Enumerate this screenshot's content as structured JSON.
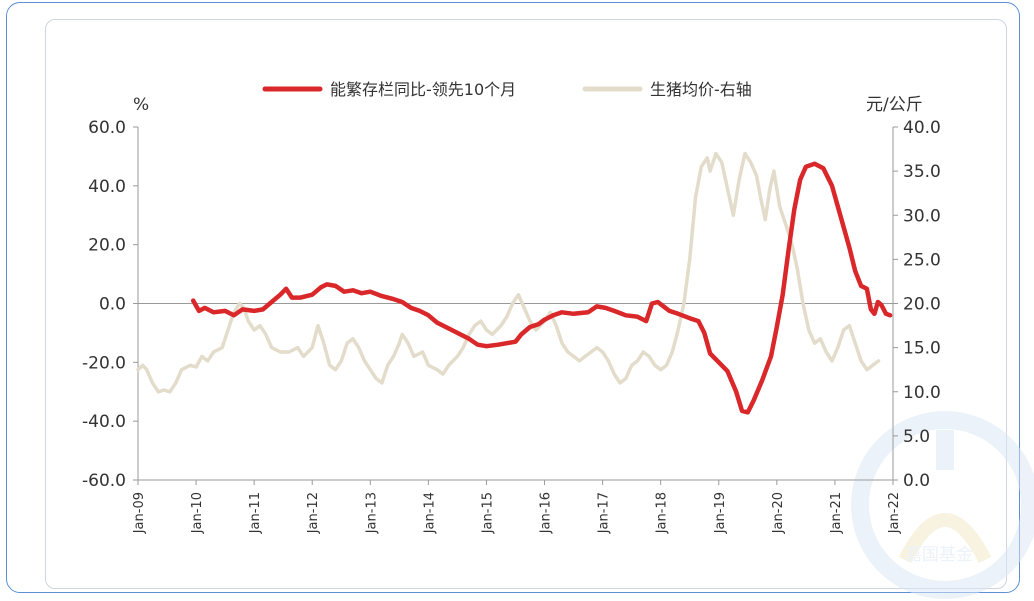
{
  "watermark": "嘉国基金",
  "colors": {
    "primary": "#d9272a",
    "secondary": "#e3dccb",
    "axis": "#9a9a9a",
    "text": "#333333",
    "frame": "#5b8fd6"
  },
  "chart_data": {
    "type": "line",
    "left_axis_label": "%",
    "right_axis_label": "元/公斤",
    "ylim_left": [
      -60,
      60
    ],
    "ylim_right": [
      0,
      40
    ],
    "y_left_ticks": [
      "60.0",
      "40.0",
      "20.0",
      "0.0",
      "-20.0",
      "-40.0",
      "-60.0"
    ],
    "y_right_ticks": [
      "40.0",
      "35.0",
      "30.0",
      "25.0",
      "20.0",
      "15.0",
      "10.0",
      "5.0",
      "0.0"
    ],
    "x_ticks": [
      "Jan-09",
      "Jan-10",
      "Jan-11",
      "Jan-12",
      "Jan-13",
      "Jan-14",
      "Jan-15",
      "Jan-16",
      "Jan-17",
      "Jan-18",
      "Jan-19",
      "Jan-20",
      "Jan-21",
      "Jan-22"
    ],
    "legend_position": "top-center",
    "series": [
      {
        "name": "能繁存栏同比-领先10个月",
        "axis": "left",
        "color": "#d9272a",
        "points": [
          [
            2009.95,
            1.0
          ],
          [
            2010.05,
            -2.5
          ],
          [
            2010.15,
            -1.5
          ],
          [
            2010.3,
            -3.0
          ],
          [
            2010.5,
            -2.5
          ],
          [
            2010.65,
            -4.0
          ],
          [
            2010.8,
            -2.0
          ],
          [
            2011.0,
            -2.5
          ],
          [
            2011.15,
            -2.0
          ],
          [
            2011.3,
            0.5
          ],
          [
            2011.45,
            3.0
          ],
          [
            2011.55,
            5.0
          ],
          [
            2011.65,
            2.0
          ],
          [
            2011.8,
            2.0
          ],
          [
            2012.0,
            3.0
          ],
          [
            2012.15,
            5.5
          ],
          [
            2012.25,
            6.5
          ],
          [
            2012.4,
            6.0
          ],
          [
            2012.55,
            4.0
          ],
          [
            2012.7,
            4.5
          ],
          [
            2012.85,
            3.5
          ],
          [
            2013.0,
            4.0
          ],
          [
            2013.2,
            2.5
          ],
          [
            2013.4,
            1.5
          ],
          [
            2013.55,
            0.5
          ],
          [
            2013.7,
            -1.5
          ],
          [
            2013.85,
            -2.5
          ],
          [
            2014.0,
            -4.0
          ],
          [
            2014.15,
            -6.5
          ],
          [
            2014.3,
            -8.0
          ],
          [
            2014.5,
            -10.0
          ],
          [
            2014.7,
            -12.0
          ],
          [
            2014.85,
            -14.0
          ],
          [
            2015.0,
            -14.5
          ],
          [
            2015.2,
            -14.0
          ],
          [
            2015.35,
            -13.5
          ],
          [
            2015.5,
            -13.0
          ],
          [
            2015.6,
            -10.5
          ],
          [
            2015.75,
            -8.0
          ],
          [
            2015.9,
            -7.0
          ],
          [
            2016.0,
            -5.5
          ],
          [
            2016.15,
            -4.0
          ],
          [
            2016.3,
            -3.0
          ],
          [
            2016.5,
            -3.5
          ],
          [
            2016.75,
            -3.0
          ],
          [
            2016.9,
            -1.0
          ],
          [
            2017.05,
            -1.5
          ],
          [
            2017.2,
            -2.5
          ],
          [
            2017.4,
            -4.0
          ],
          [
            2017.6,
            -4.5
          ],
          [
            2017.75,
            -6.0
          ],
          [
            2017.85,
            0.0
          ],
          [
            2017.95,
            0.5
          ],
          [
            2018.05,
            -1.0
          ],
          [
            2018.15,
            -2.5
          ],
          [
            2018.3,
            -3.5
          ],
          [
            2018.5,
            -5.0
          ],
          [
            2018.65,
            -6.0
          ],
          [
            2018.75,
            -10.0
          ],
          [
            2018.85,
            -17.0
          ],
          [
            2019.0,
            -20.0
          ],
          [
            2019.15,
            -23.0
          ],
          [
            2019.3,
            -30.0
          ],
          [
            2019.4,
            -36.5
          ],
          [
            2019.5,
            -37.0
          ],
          [
            2019.6,
            -33.0
          ],
          [
            2019.75,
            -26.0
          ],
          [
            2019.9,
            -18.0
          ],
          [
            2020.0,
            -8.0
          ],
          [
            2020.1,
            3.0
          ],
          [
            2020.2,
            18.0
          ],
          [
            2020.3,
            32.0
          ],
          [
            2020.4,
            42.0
          ],
          [
            2020.5,
            46.5
          ],
          [
            2020.65,
            47.5
          ],
          [
            2020.8,
            46.0
          ],
          [
            2020.95,
            40.0
          ],
          [
            2021.05,
            33.0
          ],
          [
            2021.15,
            26.0
          ],
          [
            2021.25,
            19.0
          ],
          [
            2021.35,
            11.0
          ],
          [
            2021.45,
            6.0
          ],
          [
            2021.55,
            5.0
          ],
          [
            2021.62,
            -2.0
          ],
          [
            2021.68,
            -3.5
          ],
          [
            2021.74,
            0.5
          ],
          [
            2021.8,
            -0.5
          ],
          [
            2021.88,
            -3.5
          ],
          [
            2021.95,
            -4.0
          ]
        ]
      },
      {
        "name": "生猪均价-右轴",
        "axis": "right",
        "color": "#e3dccb",
        "points": [
          [
            2009.0,
            12.5
          ],
          [
            2009.08,
            13.0
          ],
          [
            2009.15,
            12.5
          ],
          [
            2009.25,
            11.0
          ],
          [
            2009.35,
            10.0
          ],
          [
            2009.45,
            10.2
          ],
          [
            2009.55,
            10.0
          ],
          [
            2009.65,
            11.0
          ],
          [
            2009.75,
            12.5
          ],
          [
            2009.9,
            13.0
          ],
          [
            2010.0,
            12.8
          ],
          [
            2010.1,
            14.0
          ],
          [
            2010.2,
            13.5
          ],
          [
            2010.3,
            14.5
          ],
          [
            2010.45,
            15.0
          ],
          [
            2010.55,
            17.0
          ],
          [
            2010.65,
            19.0
          ],
          [
            2010.75,
            20.0
          ],
          [
            2010.82,
            19.5
          ],
          [
            2010.9,
            18.0
          ],
          [
            2011.0,
            17.0
          ],
          [
            2011.1,
            17.5
          ],
          [
            2011.2,
            16.5
          ],
          [
            2011.3,
            15.0
          ],
          [
            2011.45,
            14.5
          ],
          [
            2011.6,
            14.5
          ],
          [
            2011.75,
            15.0
          ],
          [
            2011.85,
            14.0
          ],
          [
            2012.0,
            15.0
          ],
          [
            2012.1,
            17.5
          ],
          [
            2012.2,
            15.5
          ],
          [
            2012.3,
            13.0
          ],
          [
            2012.4,
            12.5
          ],
          [
            2012.5,
            13.5
          ],
          [
            2012.6,
            15.5
          ],
          [
            2012.7,
            16.0
          ],
          [
            2012.8,
            15.0
          ],
          [
            2012.9,
            13.5
          ],
          [
            2013.0,
            12.5
          ],
          [
            2013.1,
            11.5
          ],
          [
            2013.2,
            11.0
          ],
          [
            2013.3,
            13.0
          ],
          [
            2013.4,
            14.0
          ],
          [
            2013.5,
            15.5
          ],
          [
            2013.55,
            16.5
          ],
          [
            2013.65,
            15.5
          ],
          [
            2013.75,
            14.0
          ],
          [
            2013.9,
            14.5
          ],
          [
            2014.0,
            13.0
          ],
          [
            2014.15,
            12.5
          ],
          [
            2014.25,
            12.0
          ],
          [
            2014.35,
            13.0
          ],
          [
            2014.5,
            14.0
          ],
          [
            2014.6,
            15.0
          ],
          [
            2014.7,
            16.5
          ],
          [
            2014.8,
            17.5
          ],
          [
            2014.9,
            18.0
          ],
          [
            2015.0,
            17.0
          ],
          [
            2015.1,
            16.5
          ],
          [
            2015.25,
            17.5
          ],
          [
            2015.35,
            18.5
          ],
          [
            2015.45,
            20.0
          ],
          [
            2015.55,
            21.0
          ],
          [
            2015.65,
            19.5
          ],
          [
            2015.75,
            18.0
          ],
          [
            2015.85,
            17.0
          ],
          [
            2016.0,
            18.0
          ],
          [
            2016.1,
            19.0
          ],
          [
            2016.2,
            17.5
          ],
          [
            2016.3,
            15.5
          ],
          [
            2016.4,
            14.5
          ],
          [
            2016.5,
            14.0
          ],
          [
            2016.6,
            13.5
          ],
          [
            2016.7,
            14.0
          ],
          [
            2016.8,
            14.5
          ],
          [
            2016.9,
            15.0
          ],
          [
            2017.0,
            14.5
          ],
          [
            2017.1,
            13.5
          ],
          [
            2017.2,
            12.0
          ],
          [
            2017.3,
            11.0
          ],
          [
            2017.4,
            11.5
          ],
          [
            2017.5,
            13.0
          ],
          [
            2017.6,
            13.5
          ],
          [
            2017.7,
            14.5
          ],
          [
            2017.8,
            14.0
          ],
          [
            2017.9,
            13.0
          ],
          [
            2018.0,
            12.5
          ],
          [
            2018.1,
            13.0
          ],
          [
            2018.2,
            14.5
          ],
          [
            2018.3,
            17.0
          ],
          [
            2018.4,
            20.0
          ],
          [
            2018.5,
            25.0
          ],
          [
            2018.6,
            32.0
          ],
          [
            2018.7,
            35.5
          ],
          [
            2018.8,
            36.5
          ],
          [
            2018.85,
            35.0
          ],
          [
            2018.95,
            37.0
          ],
          [
            2019.05,
            36.0
          ],
          [
            2019.15,
            33.0
          ],
          [
            2019.25,
            30.0
          ],
          [
            2019.35,
            34.0
          ],
          [
            2019.45,
            37.0
          ],
          [
            2019.55,
            36.0
          ],
          [
            2019.65,
            34.5
          ],
          [
            2019.72,
            32.0
          ],
          [
            2019.8,
            29.5
          ],
          [
            2019.88,
            33.0
          ],
          [
            2019.95,
            35.0
          ],
          [
            2020.05,
            31.0
          ],
          [
            2020.15,
            29.0
          ],
          [
            2020.25,
            27.0
          ],
          [
            2020.35,
            24.0
          ],
          [
            2020.45,
            20.0
          ],
          [
            2020.55,
            17.0
          ],
          [
            2020.65,
            15.5
          ],
          [
            2020.75,
            16.0
          ],
          [
            2020.85,
            14.5
          ],
          [
            2020.95,
            13.5
          ],
          [
            2021.05,
            15.0
          ],
          [
            2021.15,
            17.0
          ],
          [
            2021.25,
            17.5
          ],
          [
            2021.35,
            15.5
          ],
          [
            2021.45,
            13.5
          ],
          [
            2021.55,
            12.5
          ],
          [
            2021.65,
            13.0
          ],
          [
            2021.75,
            13.5
          ]
        ]
      }
    ]
  }
}
